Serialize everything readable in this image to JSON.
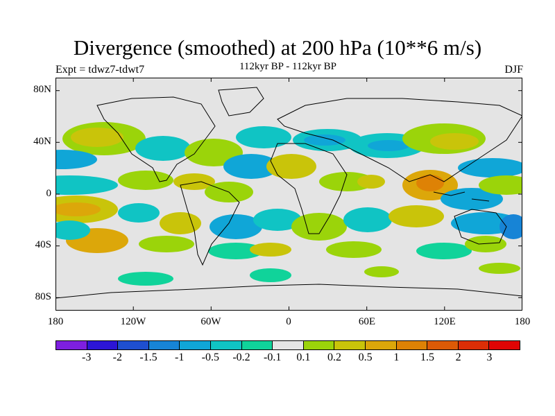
{
  "header": {
    "title": "Divergence (smoothed) at 200 hPa (10**6 m/s)",
    "experiment": "Expt = tdwz7-tdwt7",
    "period": "112kyr BP - 112kyr BP",
    "season": "DJF"
  },
  "map": {
    "projection": "cylindrical equidistant",
    "extent": {
      "lon": [
        -180,
        180
      ],
      "lat": [
        -90,
        90
      ]
    },
    "lat_labels": [
      "80N",
      "40N",
      "0",
      "40S",
      "80S"
    ],
    "lon_labels": [
      "180",
      "120W",
      "60W",
      "0",
      "60E",
      "120E",
      "180"
    ]
  },
  "legend": {
    "colors": [
      "#7e1fe0",
      "#2c15d6",
      "#1e4fd0",
      "#1784d6",
      "#10a6d7",
      "#10c4c4",
      "#10d39a",
      "#e4e4e4",
      "#9bd40a",
      "#c9c40a",
      "#dca70a",
      "#de8205",
      "#dc5a06",
      "#dc2e06",
      "#e00404"
    ],
    "labels": [
      "-3",
      "-2",
      "-1.5",
      "-1",
      "-0.5",
      "-0.2",
      "-0.1",
      "0.1",
      "0.2",
      "0.5",
      "1",
      "1.5",
      "2",
      "3"
    ]
  }
}
